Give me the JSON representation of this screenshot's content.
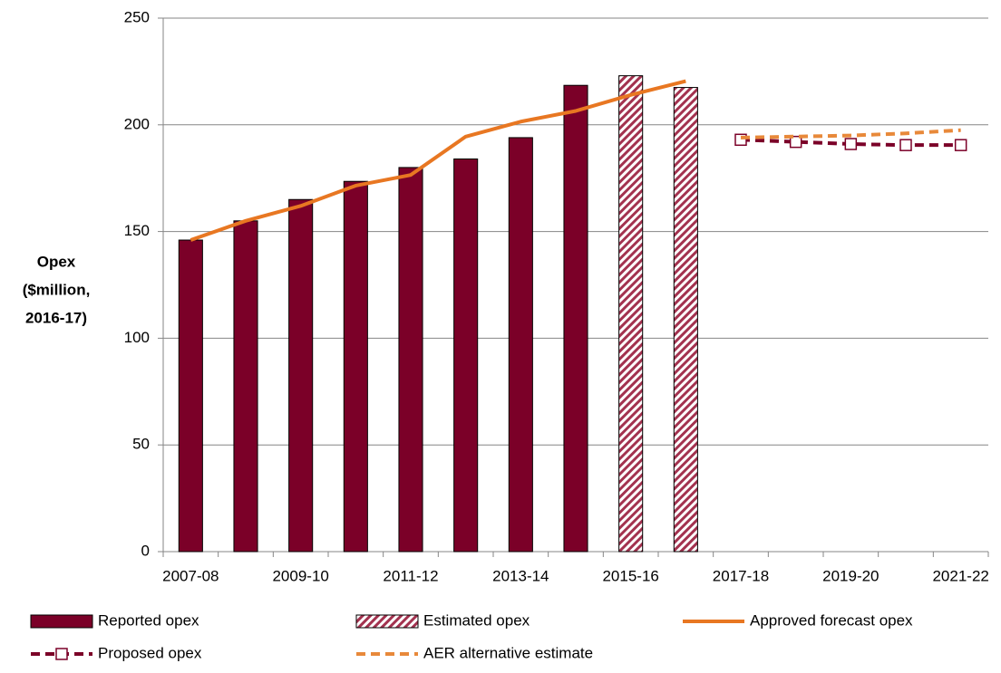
{
  "chart_data": {
    "type": "bar",
    "y_label": [
      "Opex",
      "($million,",
      "2016-17)"
    ],
    "categories": [
      "2007-08",
      null,
      "2009-10",
      null,
      "2011-12",
      null,
      "2013-14",
      null,
      "2015-16",
      null,
      "2017-18",
      null,
      "2019-20",
      null,
      "2021-22"
    ],
    "ylim": [
      0,
      250
    ],
    "yticks": [
      0,
      50,
      100,
      150,
      200,
      250
    ],
    "grid": true,
    "legend": "bottom",
    "series": [
      {
        "name": "Reported opex",
        "type": "bar",
        "color": "#7b0028",
        "values": [
          146,
          155,
          165,
          173.5,
          180,
          184,
          194,
          218.5,
          null,
          null,
          null,
          null,
          null,
          null,
          null
        ]
      },
      {
        "name": "Estimated opex",
        "type": "bar",
        "color": "#7b0028",
        "fill": "hatch",
        "values": [
          null,
          null,
          null,
          null,
          null,
          null,
          null,
          null,
          223,
          217.5,
          null,
          null,
          null,
          null,
          null
        ]
      },
      {
        "name": "Approved forecast opex",
        "type": "line",
        "color": "#e87722",
        "values": [
          146,
          155,
          162,
          171.5,
          176.5,
          194.5,
          201.5,
          206.5,
          214,
          220.5,
          null,
          null,
          null,
          null,
          null
        ]
      },
      {
        "name": "Proposed opex",
        "type": "line",
        "color": "#7b0028",
        "dash": true,
        "marker": "square",
        "values": [
          null,
          null,
          null,
          null,
          null,
          null,
          null,
          null,
          null,
          null,
          193,
          192,
          191,
          190.5,
          190.5
        ]
      },
      {
        "name": "AER alternative estimate",
        "type": "line",
        "color": "#e8893a",
        "dash": true,
        "values": [
          null,
          null,
          null,
          null,
          null,
          null,
          null,
          null,
          null,
          null,
          194,
          194.5,
          195,
          196,
          197.5
        ]
      }
    ]
  }
}
